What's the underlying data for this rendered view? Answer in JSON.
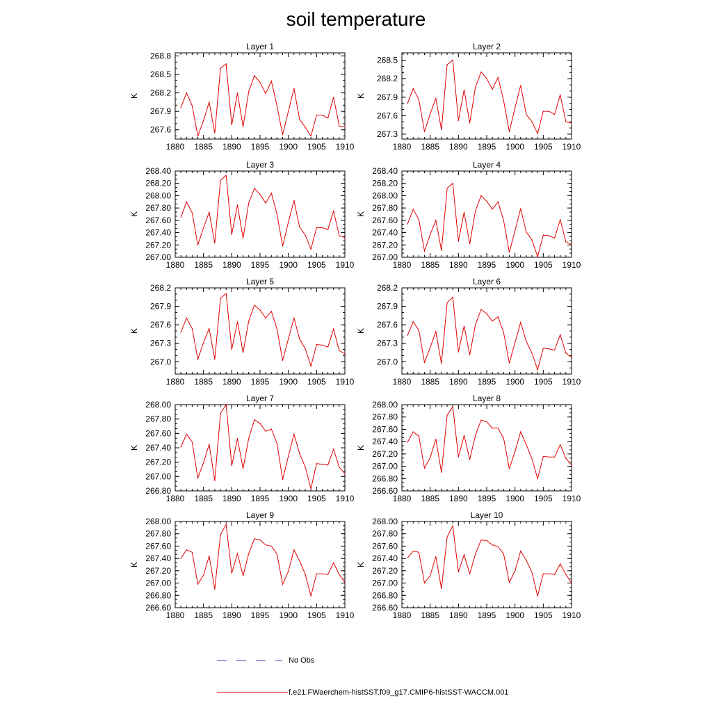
{
  "title": "soil temperature",
  "legend": {
    "obs_label": "No Obs",
    "obs_color": "#3b3bb8",
    "model_label": "f.e21.FWaerchem-histSST.f09_g17.CMIP6-histSST-WACCM.001",
    "model_color": "#e00000"
  },
  "chart_data": [
    {
      "type": "line",
      "title": "Layer 1",
      "ylabel": "K",
      "xlim": [
        1880,
        1910
      ],
      "xticks": [
        1880,
        1885,
        1890,
        1895,
        1900,
        1905,
        1910
      ],
      "ylim": [
        267.45,
        268.85
      ],
      "yticks": [
        "267.6",
        "267.9",
        "268.2",
        "268.5",
        "268.8"
      ],
      "grid": false,
      "series": [
        {
          "color": "#e00000",
          "x": [
            1881,
            1882,
            1883,
            1884,
            1885,
            1886,
            1887,
            1888,
            1889,
            1890,
            1891,
            1892,
            1893,
            1894,
            1895,
            1896,
            1897,
            1898,
            1899,
            1900,
            1901,
            1902,
            1903,
            1904,
            1905,
            1906,
            1907,
            1908,
            1909,
            1910
          ],
          "values": [
            267.96,
            268.2,
            267.99,
            267.5,
            267.75,
            268.05,
            267.55,
            268.6,
            268.67,
            267.68,
            268.2,
            267.65,
            268.22,
            268.48,
            268.37,
            268.19,
            268.39,
            267.99,
            267.52,
            267.9,
            268.27,
            267.77,
            267.64,
            267.5,
            267.84,
            267.84,
            267.79,
            268.13,
            267.66,
            267.65
          ]
        }
      ]
    },
    {
      "type": "line",
      "title": "Layer 2",
      "ylabel": "K",
      "xlim": [
        1880,
        1910
      ],
      "xticks": [
        1880,
        1885,
        1890,
        1895,
        1900,
        1905,
        1910
      ],
      "ylim": [
        267.22,
        268.62
      ],
      "yticks": [
        "267.3",
        "267.6",
        "267.9",
        "268.2",
        "268.5"
      ],
      "grid": false,
      "series": [
        {
          "color": "#e00000",
          "x": [
            1881,
            1882,
            1883,
            1884,
            1885,
            1886,
            1887,
            1888,
            1889,
            1890,
            1891,
            1892,
            1893,
            1894,
            1895,
            1896,
            1897,
            1898,
            1899,
            1900,
            1901,
            1902,
            1903,
            1904,
            1905,
            1906,
            1907,
            1908,
            1909,
            1910
          ],
          "values": [
            267.8,
            268.04,
            267.86,
            267.34,
            267.63,
            267.88,
            267.37,
            268.43,
            268.5,
            267.52,
            268.02,
            267.48,
            268.06,
            268.31,
            268.2,
            268.03,
            268.22,
            267.84,
            267.34,
            267.73,
            268.09,
            267.62,
            267.5,
            267.31,
            267.67,
            267.67,
            267.62,
            267.94,
            267.5,
            267.48
          ]
        }
      ]
    },
    {
      "type": "line",
      "title": "Layer 3",
      "ylabel": "K",
      "xlim": [
        1880,
        1910
      ],
      "xticks": [
        1880,
        1885,
        1890,
        1895,
        1900,
        1905,
        1910
      ],
      "ylim": [
        267.0,
        268.4
      ],
      "yticks": [
        "267.00",
        "267.20",
        "267.40",
        "267.60",
        "267.80",
        "268.00",
        "268.20",
        "268.40"
      ],
      "grid": false,
      "series": [
        {
          "color": "#e00000",
          "x": [
            1881,
            1882,
            1883,
            1884,
            1885,
            1886,
            1887,
            1888,
            1889,
            1890,
            1891,
            1892,
            1893,
            1894,
            1895,
            1896,
            1897,
            1898,
            1899,
            1900,
            1901,
            1902,
            1903,
            1904,
            1905,
            1906,
            1907,
            1908,
            1909,
            1910
          ],
          "values": [
            267.65,
            267.9,
            267.72,
            267.2,
            267.48,
            267.73,
            267.23,
            268.25,
            268.33,
            267.37,
            267.85,
            267.31,
            267.88,
            268.12,
            268.02,
            267.88,
            268.04,
            267.7,
            267.18,
            267.57,
            267.92,
            267.49,
            267.36,
            267.13,
            267.48,
            267.48,
            267.45,
            267.75,
            267.35,
            267.32
          ]
        }
      ]
    },
    {
      "type": "line",
      "title": "Layer 4",
      "ylabel": "K",
      "xlim": [
        1880,
        1910
      ],
      "xticks": [
        1880,
        1885,
        1890,
        1895,
        1900,
        1905,
        1910
      ],
      "ylim": [
        267.0,
        268.4
      ],
      "yticks": [
        "267.00",
        "267.20",
        "267.40",
        "267.60",
        "267.80",
        "268.00",
        "268.20",
        "268.40"
      ],
      "grid": false,
      "series": [
        {
          "color": "#e00000",
          "x": [
            1881,
            1882,
            1883,
            1884,
            1885,
            1886,
            1887,
            1888,
            1889,
            1890,
            1891,
            1892,
            1893,
            1894,
            1895,
            1896,
            1897,
            1898,
            1899,
            1900,
            1901,
            1902,
            1903,
            1904,
            1905,
            1906,
            1907,
            1908,
            1909,
            1910
          ],
          "values": [
            267.54,
            267.78,
            267.61,
            267.1,
            267.37,
            267.6,
            267.11,
            268.12,
            268.2,
            267.26,
            267.73,
            267.22,
            267.75,
            268.0,
            267.91,
            267.78,
            267.9,
            267.59,
            267.08,
            267.43,
            267.79,
            267.41,
            267.28,
            267.01,
            267.36,
            267.35,
            267.31,
            267.61,
            267.25,
            267.21
          ]
        }
      ]
    },
    {
      "type": "line",
      "title": "Layer 5",
      "ylabel": "K",
      "xlim": [
        1880,
        1910
      ],
      "xticks": [
        1880,
        1885,
        1890,
        1895,
        1900,
        1905,
        1910
      ],
      "ylim": [
        266.8,
        268.2
      ],
      "yticks": [
        "267.0",
        "267.3",
        "267.6",
        "267.9",
        "268.2"
      ],
      "grid": false,
      "series": [
        {
          "color": "#e00000",
          "x": [
            1881,
            1882,
            1883,
            1884,
            1885,
            1886,
            1887,
            1888,
            1889,
            1890,
            1891,
            1892,
            1893,
            1894,
            1895,
            1896,
            1897,
            1898,
            1899,
            1900,
            1901,
            1902,
            1903,
            1904,
            1905,
            1906,
            1907,
            1908,
            1909,
            1910
          ],
          "values": [
            267.48,
            267.71,
            267.54,
            267.04,
            267.31,
            267.54,
            267.04,
            268.03,
            268.11,
            267.2,
            267.65,
            267.15,
            267.66,
            267.92,
            267.84,
            267.71,
            267.82,
            267.53,
            267.02,
            267.37,
            267.71,
            267.37,
            267.21,
            266.93,
            267.28,
            267.27,
            267.24,
            267.53,
            267.18,
            267.13
          ]
        }
      ]
    },
    {
      "type": "line",
      "title": "Layer 6",
      "ylabel": "K",
      "xlim": [
        1880,
        1910
      ],
      "xticks": [
        1880,
        1885,
        1890,
        1895,
        1900,
        1905,
        1910
      ],
      "ylim": [
        266.8,
        268.2
      ],
      "yticks": [
        "267.0",
        "267.3",
        "267.6",
        "267.9",
        "268.2"
      ],
      "grid": false,
      "series": [
        {
          "color": "#e00000",
          "x": [
            1881,
            1882,
            1883,
            1884,
            1885,
            1886,
            1887,
            1888,
            1889,
            1890,
            1891,
            1892,
            1893,
            1894,
            1895,
            1896,
            1897,
            1898,
            1899,
            1900,
            1901,
            1902,
            1903,
            1904,
            1905,
            1906,
            1907,
            1908,
            1909,
            1910
          ],
          "values": [
            267.43,
            267.65,
            267.51,
            266.99,
            267.23,
            267.49,
            266.97,
            267.96,
            268.05,
            267.16,
            267.58,
            267.11,
            267.6,
            267.85,
            267.78,
            267.66,
            267.73,
            267.47,
            266.98,
            267.31,
            267.64,
            267.33,
            267.14,
            266.87,
            267.22,
            267.21,
            267.19,
            267.44,
            267.14,
            267.07
          ]
        }
      ]
    },
    {
      "type": "line",
      "title": "Layer 7",
      "ylabel": "K",
      "xlim": [
        1880,
        1910
      ],
      "xticks": [
        1880,
        1885,
        1890,
        1895,
        1900,
        1905,
        1910
      ],
      "ylim": [
        266.8,
        268.0
      ],
      "yticks": [
        "266.80",
        "267.00",
        "267.20",
        "267.40",
        "267.60",
        "267.80",
        "268.00"
      ],
      "grid": false,
      "series": [
        {
          "color": "#e00000",
          "x": [
            1881,
            1882,
            1883,
            1884,
            1885,
            1886,
            1887,
            1888,
            1889,
            1890,
            1891,
            1892,
            1893,
            1894,
            1895,
            1896,
            1897,
            1898,
            1899,
            1900,
            1901,
            1902,
            1903,
            1904,
            1905,
            1906,
            1907,
            1908,
            1909,
            1910
          ],
          "values": [
            267.41,
            267.59,
            267.48,
            266.98,
            267.19,
            267.45,
            266.94,
            267.88,
            268.0,
            267.15,
            267.53,
            267.11,
            267.53,
            267.79,
            267.74,
            267.63,
            267.66,
            267.46,
            266.96,
            267.28,
            267.59,
            267.32,
            267.13,
            266.83,
            267.18,
            267.17,
            267.16,
            267.38,
            267.13,
            267.04
          ]
        }
      ]
    },
    {
      "type": "line",
      "title": "Layer 8",
      "ylabel": "K",
      "xlim": [
        1880,
        1910
      ],
      "xticks": [
        1880,
        1885,
        1890,
        1895,
        1900,
        1905,
        1910
      ],
      "ylim": [
        266.6,
        268.0
      ],
      "yticks": [
        "266.60",
        "266.80",
        "267.00",
        "267.20",
        "267.40",
        "267.60",
        "267.80",
        "268.00"
      ],
      "grid": false,
      "series": [
        {
          "color": "#e00000",
          "x": [
            1881,
            1882,
            1883,
            1884,
            1885,
            1886,
            1887,
            1888,
            1889,
            1890,
            1891,
            1892,
            1893,
            1894,
            1895,
            1896,
            1897,
            1898,
            1899,
            1900,
            1901,
            1902,
            1903,
            1904,
            1905,
            1906,
            1907,
            1908,
            1909,
            1910
          ],
          "values": [
            267.39,
            267.56,
            267.49,
            266.97,
            267.14,
            267.44,
            266.9,
            267.83,
            267.97,
            267.15,
            267.5,
            267.11,
            267.5,
            267.75,
            267.72,
            267.62,
            267.62,
            267.45,
            266.96,
            267.24,
            267.56,
            267.35,
            267.12,
            266.8,
            267.16,
            267.15,
            267.15,
            267.35,
            267.13,
            267.02
          ]
        }
      ]
    },
    {
      "type": "line",
      "title": "Layer 9",
      "ylabel": "K",
      "xlim": [
        1880,
        1910
      ],
      "xticks": [
        1880,
        1885,
        1890,
        1895,
        1900,
        1905,
        1910
      ],
      "ylim": [
        266.6,
        268.0
      ],
      "yticks": [
        "266.60",
        "266.80",
        "267.00",
        "267.20",
        "267.40",
        "267.60",
        "267.80",
        "268.00"
      ],
      "grid": false,
      "series": [
        {
          "color": "#e00000",
          "x": [
            1881,
            1882,
            1883,
            1884,
            1885,
            1886,
            1887,
            1888,
            1889,
            1890,
            1891,
            1892,
            1893,
            1894,
            1895,
            1896,
            1897,
            1898,
            1899,
            1900,
            1901,
            1902,
            1903,
            1904,
            1905,
            1906,
            1907,
            1908,
            1909,
            1910
          ],
          "values": [
            267.4,
            267.54,
            267.5,
            266.98,
            267.13,
            267.44,
            266.9,
            267.79,
            267.95,
            267.16,
            267.48,
            267.12,
            267.48,
            267.72,
            267.7,
            267.62,
            267.6,
            267.47,
            266.98,
            267.19,
            267.54,
            267.36,
            267.14,
            266.79,
            267.15,
            267.15,
            267.14,
            267.33,
            267.14,
            267.01
          ]
        }
      ]
    },
    {
      "type": "line",
      "title": "Layer 10",
      "ylabel": "K",
      "xlim": [
        1880,
        1910
      ],
      "xticks": [
        1880,
        1885,
        1890,
        1895,
        1900,
        1905,
        1910
      ],
      "ylim": [
        266.6,
        268.0
      ],
      "yticks": [
        "266.60",
        "266.80",
        "267.00",
        "267.20",
        "267.40",
        "267.60",
        "267.80",
        "268.00"
      ],
      "grid": false,
      "series": [
        {
          "color": "#e00000",
          "x": [
            1881,
            1882,
            1883,
            1884,
            1885,
            1886,
            1887,
            1888,
            1889,
            1890,
            1891,
            1892,
            1893,
            1894,
            1895,
            1896,
            1897,
            1898,
            1899,
            1900,
            1901,
            1902,
            1903,
            1904,
            1905,
            1906,
            1907,
            1908,
            1909,
            1910
          ],
          "values": [
            267.41,
            267.52,
            267.5,
            267.0,
            267.12,
            267.43,
            266.91,
            267.75,
            267.93,
            267.18,
            267.46,
            267.15,
            267.47,
            267.7,
            267.69,
            267.62,
            267.59,
            267.47,
            267.01,
            267.2,
            267.52,
            267.37,
            267.17,
            266.79,
            267.15,
            267.15,
            267.14,
            267.31,
            267.14,
            267.0
          ]
        }
      ]
    }
  ]
}
